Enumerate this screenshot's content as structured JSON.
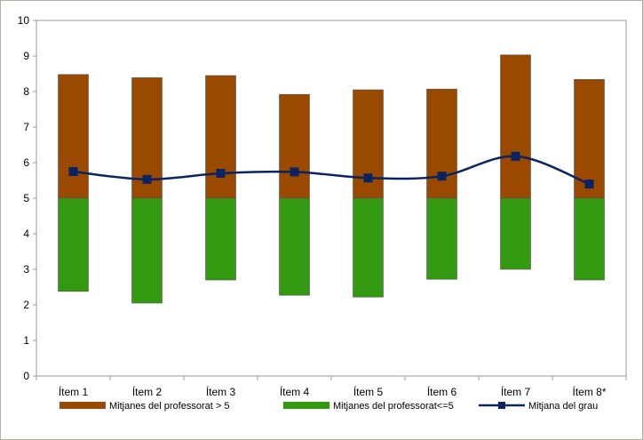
{
  "chart_data": {
    "type": "bar",
    "categories": [
      "Ítem 1",
      "Ítem 2",
      "Ítem 3",
      "Ítem 4",
      "Ítem 5",
      "Ítem 6",
      "Ítem 7",
      "Ítem 8*"
    ],
    "ylim": [
      0,
      10
    ],
    "yticks": [
      "0",
      "1",
      "2",
      "3",
      "4",
      "5",
      "6",
      "7",
      "8",
      "9",
      "10"
    ],
    "grid": false,
    "legend_position": "bottom",
    "series": [
      {
        "name": "Mitjanes del professorat > 5",
        "kind": "floating-bar",
        "color": "#994a00",
        "low": [
          5,
          5,
          5,
          5,
          5,
          5,
          5,
          5
        ],
        "high": [
          8.48,
          8.39,
          8.45,
          7.92,
          8.05,
          8.07,
          9.03,
          8.34
        ]
      },
      {
        "name": "Mitjanes del professorat<=5",
        "kind": "floating-bar",
        "color": "#339910",
        "low": [
          2.38,
          2.05,
          2.7,
          2.27,
          2.22,
          2.72,
          3.0,
          2.7
        ],
        "high": [
          5,
          5,
          5,
          5,
          5,
          5,
          5,
          5
        ]
      },
      {
        "name": "Mitjana del grau",
        "kind": "line",
        "color": "#0b2263",
        "values": [
          5.75,
          5.53,
          5.7,
          5.74,
          5.57,
          5.62,
          6.18,
          5.4
        ]
      }
    ]
  }
}
